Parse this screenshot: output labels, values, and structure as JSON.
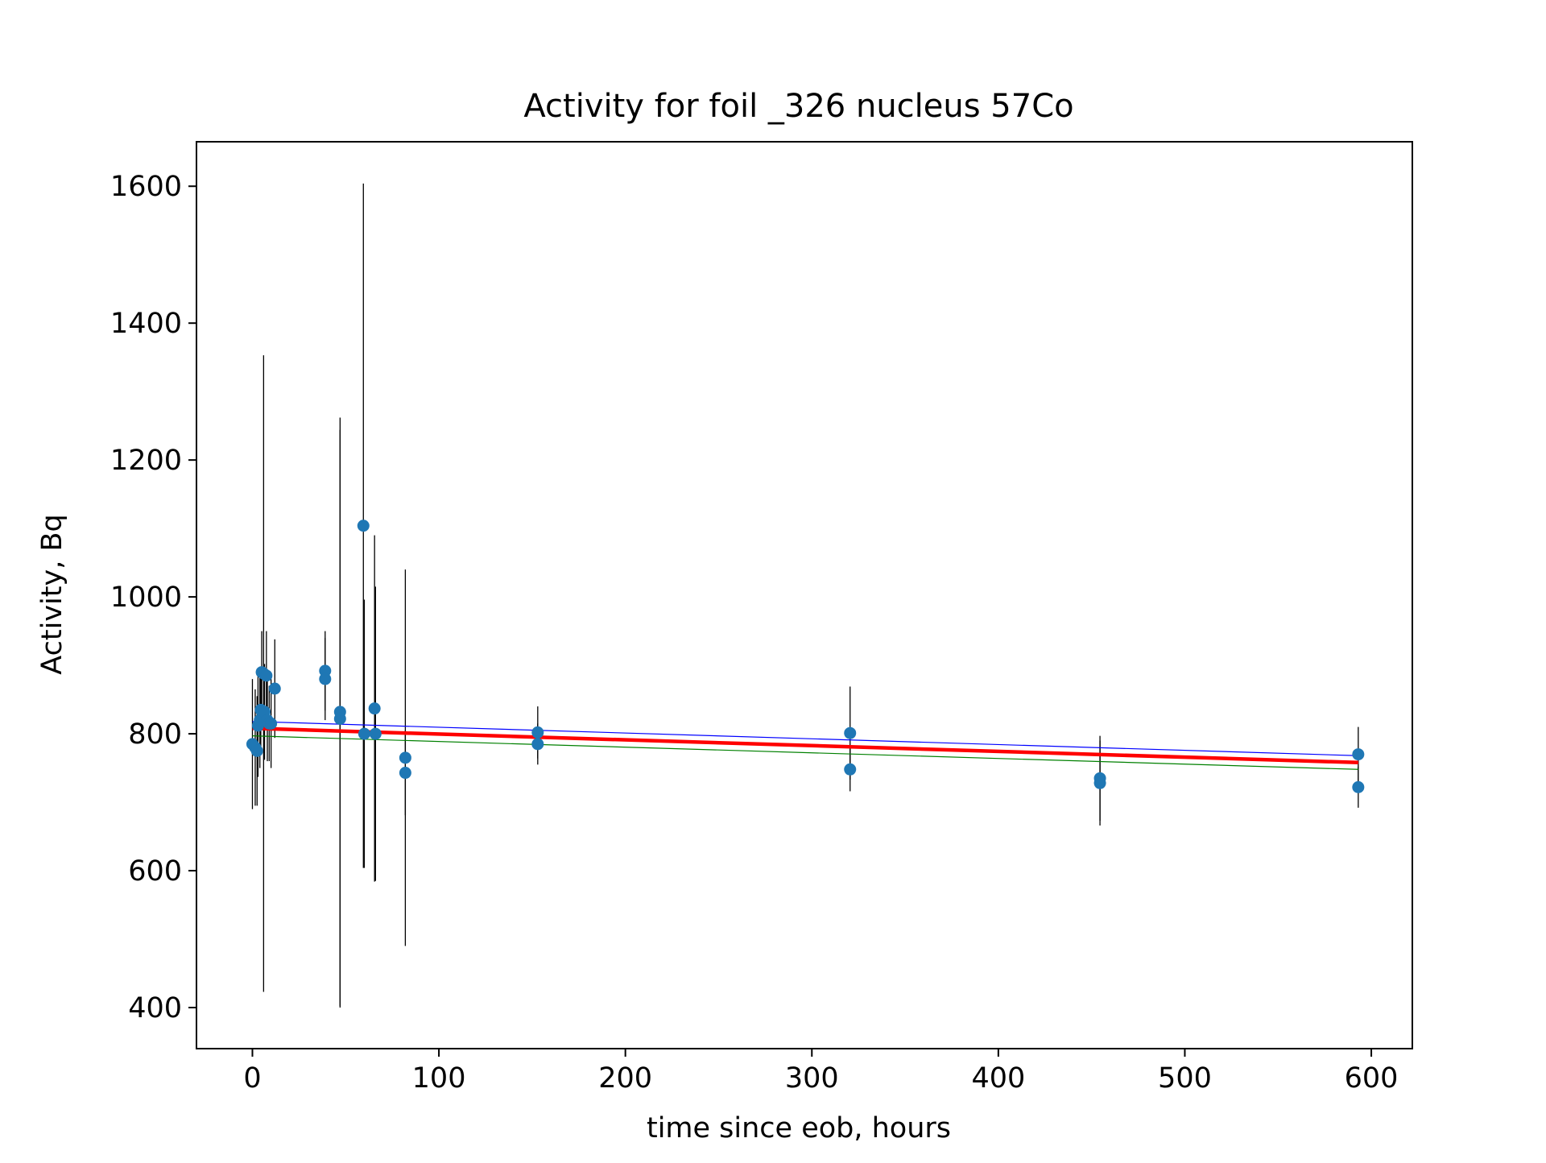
{
  "chart_data": {
    "type": "scatter",
    "title": "Activity for foil _326 nucleus 57Co",
    "xlabel": "time since eob, hours",
    "ylabel": "Activity, Bq",
    "xlim": [
      -30,
      622
    ],
    "ylim": [
      340,
      1665
    ],
    "xticks": [
      "0",
      "100",
      "200",
      "300",
      "400",
      "500",
      "600"
    ],
    "yticks": [
      "400",
      "600",
      "800",
      "1000",
      "1200",
      "1400",
      "1600"
    ],
    "grid": false,
    "legend": "none",
    "points_color": "#1f77b4",
    "errorbar_color": "#000000",
    "points": [
      {
        "x": 0.0,
        "y": 785,
        "err": 95
      },
      {
        "x": 1.5,
        "y": 780,
        "err": 85
      },
      {
        "x": 2.5,
        "y": 775,
        "err": 80
      },
      {
        "x": 3.0,
        "y": 812,
        "err": 75
      },
      {
        "x": 4.0,
        "y": 820,
        "err": 70
      },
      {
        "x": 4.5,
        "y": 835,
        "err": 60
      },
      {
        "x": 5.0,
        "y": 890,
        "err": 60
      },
      {
        "x": 6.0,
        "y": 888,
        "err": 465
      },
      {
        "x": 6.5,
        "y": 832,
        "err": 70
      },
      {
        "x": 7.5,
        "y": 885,
        "err": 65
      },
      {
        "x": 8.0,
        "y": 820,
        "err": 60
      },
      {
        "x": 9.0,
        "y": 815,
        "err": 55
      },
      {
        "x": 10.0,
        "y": 815,
        "err": 65
      },
      {
        "x": 12.0,
        "y": 866,
        "err": 72
      },
      {
        "x": 39.0,
        "y": 892,
        "err": 58
      },
      {
        "x": 39.0,
        "y": 880,
        "err": 60
      },
      {
        "x": 47.0,
        "y": 832,
        "err": 430
      },
      {
        "x": 47.0,
        "y": 822,
        "err": 422
      },
      {
        "x": 59.5,
        "y": 1104,
        "err": 500
      },
      {
        "x": 60.0,
        "y": 800,
        "err": 196
      },
      {
        "x": 65.5,
        "y": 837,
        "err": 253
      },
      {
        "x": 66.0,
        "y": 800,
        "err": 215
      },
      {
        "x": 82.0,
        "y": 765,
        "err": 275
      },
      {
        "x": 82.0,
        "y": 743,
        "err": 62
      },
      {
        "x": 153.0,
        "y": 802,
        "err": 38
      },
      {
        "x": 153.0,
        "y": 785,
        "err": 30
      },
      {
        "x": 320.5,
        "y": 801,
        "err": 68
      },
      {
        "x": 320.5,
        "y": 748,
        "err": 32
      },
      {
        "x": 454.5,
        "y": 735,
        "err": 62
      },
      {
        "x": 454.5,
        "y": 728,
        "err": 62
      },
      {
        "x": 593.0,
        "y": 770,
        "err": 40
      },
      {
        "x": 593.0,
        "y": 722,
        "err": 30
      }
    ],
    "lines": [
      {
        "color": "#0000ff",
        "width": 1.2,
        "x": [
          0,
          593
        ],
        "y": [
          818,
          768
        ]
      },
      {
        "color": "#ff0000",
        "width": 4.5,
        "x": [
          0,
          593
        ],
        "y": [
          808,
          758
        ]
      },
      {
        "color": "#008000",
        "width": 1.2,
        "x": [
          0,
          593
        ],
        "y": [
          797,
          748
        ]
      }
    ]
  }
}
